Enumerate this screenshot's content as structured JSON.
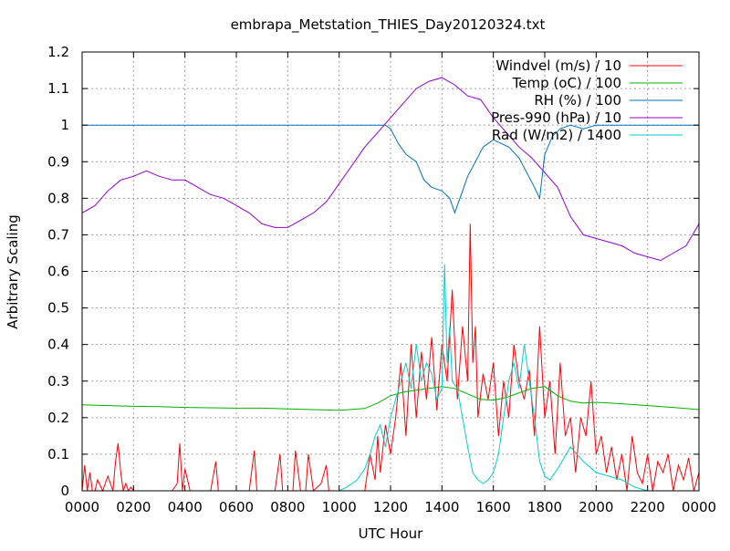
{
  "chart_data": {
    "type": "line",
    "title": "embrapa_Metstation_THIES_Day20120324.txt",
    "xlabel": "UTC Hour",
    "ylabel": "Arbitrary Scaling",
    "xlim": [
      0,
      24
    ],
    "ylim": [
      0,
      1.2
    ],
    "grid": true,
    "legend_position": "top-right",
    "x_ticks": [
      {
        "value": 0,
        "label": "0000"
      },
      {
        "value": 2,
        "label": "0200"
      },
      {
        "value": 4,
        "label": "0400"
      },
      {
        "value": 6,
        "label": "0600"
      },
      {
        "value": 8,
        "label": "0800"
      },
      {
        "value": 10,
        "label": "1000"
      },
      {
        "value": 12,
        "label": "1200"
      },
      {
        "value": 14,
        "label": "1400"
      },
      {
        "value": 16,
        "label": "1600"
      },
      {
        "value": 18,
        "label": "1800"
      },
      {
        "value": 20,
        "label": "2000"
      },
      {
        "value": 22,
        "label": "2200"
      },
      {
        "value": 24,
        "label": "0000"
      }
    ],
    "y_ticks": [
      {
        "value": 0,
        "label": "0"
      },
      {
        "value": 0.1,
        "label": "0.1"
      },
      {
        "value": 0.2,
        "label": "0.2"
      },
      {
        "value": 0.3,
        "label": "0.3"
      },
      {
        "value": 0.4,
        "label": "0.4"
      },
      {
        "value": 0.5,
        "label": "0.5"
      },
      {
        "value": 0.6,
        "label": "0.6"
      },
      {
        "value": 0.7,
        "label": "0.7"
      },
      {
        "value": 0.8,
        "label": "0.8"
      },
      {
        "value": 0.9,
        "label": "0.9"
      },
      {
        "value": 1.0,
        "label": "1"
      },
      {
        "value": 1.1,
        "label": "1.1"
      },
      {
        "value": 1.2,
        "label": "1.2"
      }
    ],
    "series": [
      {
        "name": "Windvel (m/s) / 10",
        "color": "#ff0000",
        "x": [
          0,
          0.1,
          0.2,
          0.3,
          0.4,
          0.5,
          0.6,
          0.8,
          1.0,
          1.2,
          1.3,
          1.4,
          1.5,
          1.6,
          1.7,
          1.8,
          1.9,
          2.0,
          2.2,
          2.5,
          3.0,
          3.5,
          3.7,
          3.8,
          3.9,
          4.0,
          4.2,
          4.5,
          5.0,
          5.2,
          5.3,
          5.5,
          5.8,
          6.0,
          6.2,
          6.5,
          6.7,
          6.8,
          7.0,
          7.5,
          7.7,
          7.8,
          8.0,
          8.2,
          8.3,
          8.5,
          8.7,
          8.8,
          9.0,
          9.3,
          9.5,
          9.6,
          9.8,
          10.0,
          10.5,
          11.0,
          11.2,
          11.4,
          11.5,
          11.6,
          11.8,
          12.0,
          12.2,
          12.4,
          12.6,
          12.8,
          13.0,
          13.2,
          13.4,
          13.6,
          13.8,
          14.0,
          14.2,
          14.4,
          14.6,
          14.8,
          15.0,
          15.1,
          15.2,
          15.3,
          15.4,
          15.6,
          15.8,
          16.0,
          16.2,
          16.4,
          16.6,
          16.8,
          17.0,
          17.2,
          17.4,
          17.6,
          17.8,
          18.0,
          18.2,
          18.4,
          18.6,
          18.8,
          19.0,
          19.2,
          19.4,
          19.6,
          19.8,
          20.0,
          20.2,
          20.4,
          20.6,
          20.8,
          21.0,
          21.2,
          21.4,
          21.6,
          21.8,
          22.0,
          22.2,
          22.4,
          22.6,
          22.8,
          23.0,
          23.2,
          23.4,
          23.6,
          23.8,
          24.0
        ],
        "values": [
          0.0,
          0.07,
          0.0,
          0.05,
          0.0,
          0.0,
          0.03,
          0.0,
          0.04,
          0.0,
          0.08,
          0.13,
          0.05,
          0.0,
          0.02,
          0.0,
          0.01,
          0.0,
          0.0,
          0.0,
          0.0,
          0.0,
          0.02,
          0.13,
          0.0,
          0.06,
          0.0,
          0.0,
          0.0,
          0.08,
          0.0,
          0.0,
          0.0,
          0.0,
          0.0,
          0.0,
          0.11,
          0.0,
          0.0,
          0.0,
          0.1,
          0.0,
          0.0,
          0.0,
          0.11,
          0.0,
          0.0,
          0.1,
          0.0,
          0.02,
          0.07,
          0.0,
          0.0,
          0.0,
          0.0,
          0.0,
          0.1,
          0.03,
          0.15,
          0.05,
          0.18,
          0.1,
          0.2,
          0.35,
          0.15,
          0.4,
          0.2,
          0.38,
          0.25,
          0.42,
          0.22,
          0.4,
          0.3,
          0.55,
          0.25,
          0.45,
          0.3,
          0.73,
          0.35,
          0.45,
          0.2,
          0.32,
          0.25,
          0.35,
          0.15,
          0.3,
          0.2,
          0.4,
          0.3,
          0.25,
          0.33,
          0.15,
          0.45,
          0.2,
          0.3,
          0.1,
          0.35,
          0.15,
          0.2,
          0.05,
          0.2,
          0.15,
          0.3,
          0.1,
          0.15,
          0.05,
          0.12,
          0.03,
          0.1,
          0.0,
          0.15,
          0.05,
          0.02,
          0.1,
          0.0,
          0.08,
          0.05,
          0.1,
          0.0,
          0.07,
          0.03,
          0.09,
          0.0,
          0.05
        ]
      },
      {
        "name": "Temp (oC) / 100",
        "color": "#00b000",
        "x": [
          0,
          1,
          2,
          3,
          4,
          5,
          6,
          7,
          8,
          9,
          10,
          11,
          11.5,
          12,
          12.5,
          13,
          13.5,
          14,
          14.5,
          15,
          15.5,
          16,
          16.5,
          17,
          17.5,
          18,
          18.5,
          19,
          19.5,
          20,
          20.5,
          21,
          22,
          23,
          24
        ],
        "values": [
          0.235,
          0.233,
          0.231,
          0.23,
          0.228,
          0.227,
          0.226,
          0.226,
          0.224,
          0.222,
          0.22,
          0.225,
          0.24,
          0.26,
          0.27,
          0.275,
          0.28,
          0.285,
          0.28,
          0.265,
          0.25,
          0.248,
          0.255,
          0.268,
          0.28,
          0.285,
          0.26,
          0.245,
          0.24,
          0.242,
          0.24,
          0.238,
          0.233,
          0.228,
          0.222
        ]
      },
      {
        "name": "RH (%) / 100",
        "color": "#0070c0",
        "x": [
          0,
          1,
          2,
          3,
          4,
          5,
          6,
          7,
          8,
          9,
          10,
          11,
          11.8,
          12,
          12.3,
          12.6,
          13,
          13.3,
          13.6,
          14,
          14.3,
          14.5,
          14.6,
          14.8,
          15,
          15.3,
          15.6,
          16,
          16.3,
          16.6,
          17,
          17.3,
          17.6,
          17.8,
          18,
          18.3,
          18.6,
          19,
          19.5,
          20,
          21,
          22,
          23,
          24
        ],
        "values": [
          1.0,
          1.0,
          1.0,
          1.0,
          1.0,
          1.0,
          1.0,
          1.0,
          1.0,
          1.0,
          1.0,
          1.0,
          1.0,
          0.99,
          0.95,
          0.92,
          0.9,
          0.85,
          0.83,
          0.82,
          0.8,
          0.76,
          0.78,
          0.82,
          0.86,
          0.9,
          0.94,
          0.96,
          0.95,
          0.94,
          0.91,
          0.87,
          0.83,
          0.8,
          0.92,
          0.97,
          0.99,
          1.0,
          0.99,
          1.0,
          1.0,
          1.0,
          1.0,
          1.0
        ]
      },
      {
        "name": "Pres-990 (hPa) / 10",
        "color": "#9400d3",
        "x": [
          0,
          0.5,
          1,
          1.5,
          2,
          2.5,
          3,
          3.5,
          4,
          4.5,
          5,
          5.5,
          6,
          6.5,
          7,
          7.5,
          8,
          8.5,
          9,
          9.5,
          10,
          10.5,
          11,
          11.5,
          12,
          12.5,
          13,
          13.5,
          14,
          14.5,
          15,
          15.5,
          16,
          16.5,
          17,
          17.5,
          18,
          18.5,
          19,
          19.5,
          20,
          20.5,
          21,
          21.5,
          22,
          22.5,
          23,
          23.5,
          24
        ],
        "values": [
          0.76,
          0.78,
          0.82,
          0.85,
          0.86,
          0.875,
          0.86,
          0.85,
          0.85,
          0.83,
          0.81,
          0.8,
          0.78,
          0.76,
          0.73,
          0.72,
          0.72,
          0.74,
          0.76,
          0.79,
          0.84,
          0.89,
          0.94,
          0.98,
          1.02,
          1.06,
          1.1,
          1.12,
          1.13,
          1.11,
          1.08,
          1.07,
          1.02,
          0.98,
          0.94,
          0.91,
          0.87,
          0.83,
          0.75,
          0.7,
          0.69,
          0.68,
          0.67,
          0.65,
          0.64,
          0.63,
          0.65,
          0.67,
          0.73
        ]
      },
      {
        "name": "Rad (W/m2) / 1400",
        "color": "#00d0d0",
        "x": [
          0,
          5,
          10,
          10.3,
          10.7,
          11,
          11.2,
          11.4,
          11.6,
          11.8,
          12,
          12.2,
          12.4,
          12.6,
          12.8,
          13,
          13.2,
          13.4,
          13.6,
          13.8,
          14,
          14.1,
          14.2,
          14.3,
          14.4,
          14.6,
          14.8,
          15,
          15.2,
          15.4,
          15.6,
          15.8,
          16,
          16.2,
          16.4,
          16.6,
          16.8,
          17,
          17.2,
          17.4,
          17.6,
          17.8,
          18,
          18.2,
          18.5,
          19,
          19.5,
          20,
          20.5,
          21,
          21.5,
          22,
          24
        ],
        "values": [
          0,
          0,
          0,
          0.01,
          0.03,
          0.06,
          0.1,
          0.15,
          0.18,
          0.12,
          0.2,
          0.25,
          0.3,
          0.35,
          0.28,
          0.4,
          0.3,
          0.35,
          0.32,
          0.25,
          0.28,
          0.62,
          0.35,
          0.45,
          0.3,
          0.28,
          0.2,
          0.12,
          0.05,
          0.03,
          0.02,
          0.03,
          0.05,
          0.1,
          0.2,
          0.3,
          0.35,
          0.28,
          0.4,
          0.3,
          0.2,
          0.08,
          0.04,
          0.03,
          0.06,
          0.12,
          0.08,
          0.05,
          0.04,
          0.03,
          0.01,
          0.0,
          0.0
        ]
      }
    ]
  }
}
